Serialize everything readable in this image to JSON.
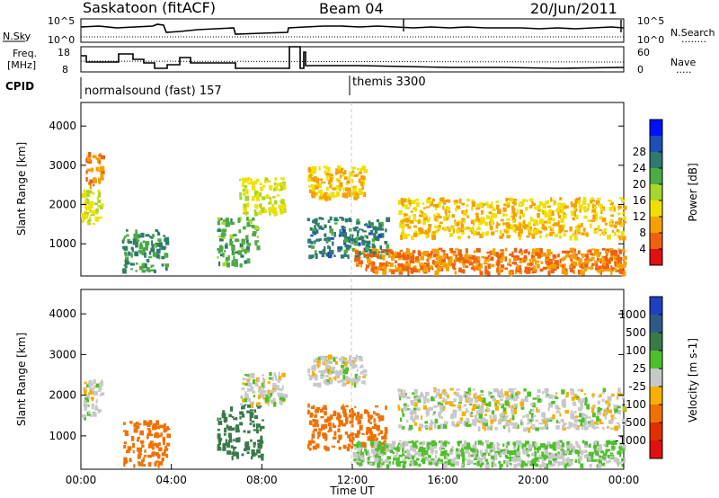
{
  "header": {
    "station": "Saskatoon (fitACF)",
    "beam": "Beam 04",
    "date": "20/Jun/2011"
  },
  "noise_panel": {
    "left_label": "N.Sky",
    "left_tick_top": "10^5",
    "left_tick_bottom": "10^0",
    "right_tick_top": "10^5",
    "right_tick_bottom": "10^0",
    "right_label": "N.Search",
    "right_label_line": "........"
  },
  "freq_panel": {
    "left_label_1": "Freq.",
    "left_label_2": "[MHz]",
    "left_tick_top": "18",
    "left_tick_bottom": "8",
    "right_tick_top": "60",
    "right_tick_bottom": "0",
    "right_label": "Nave",
    "right_label_line": "....."
  },
  "cpid": {
    "label": "CPID",
    "programs": [
      "normalsound (fast) 157",
      "themis 3300"
    ]
  },
  "chart_data": [
    {
      "type": "heatmap",
      "name": "Power",
      "xlabel": "",
      "ylabel": "Slant Range [km]",
      "xlim": [
        0,
        24
      ],
      "ylim": [
        180,
        4600
      ],
      "yticks": [
        "1000",
        "2000",
        "3000",
        "4000"
      ],
      "colorbar": {
        "label": "Power [dB]",
        "ticks": [
          "4",
          "8",
          "12",
          "16",
          "20",
          "24",
          "28"
        ],
        "colors": [
          "#0010ff",
          "#1f4fb4",
          "#2e7a6e",
          "#4daa44",
          "#a8d62a",
          "#f0e000",
          "#f5a000",
          "#f06010",
          "#e01010"
        ]
      },
      "echo_regions": [
        {
          "t0": 0.0,
          "t1": 0.9,
          "r0": 1500,
          "r1": 2400,
          "level": 13
        },
        {
          "t0": 1.8,
          "t1": 3.8,
          "r0": 300,
          "r1": 1400,
          "level": 22
        },
        {
          "t0": 0.2,
          "t1": 0.9,
          "r0": 2500,
          "r1": 3400,
          "level": 7
        },
        {
          "t0": 6.0,
          "t1": 7.8,
          "r0": 500,
          "r1": 1700,
          "level": 20
        },
        {
          "t0": 7.0,
          "t1": 9.0,
          "r0": 1800,
          "r1": 2700,
          "level": 13
        },
        {
          "t0": 10.0,
          "t1": 13.5,
          "r0": 700,
          "r1": 1700,
          "level": 24
        },
        {
          "t0": 10.0,
          "t1": 12.5,
          "r0": 2200,
          "r1": 3000,
          "level": 10
        },
        {
          "t0": 14.0,
          "t1": 24.0,
          "r0": 1200,
          "r1": 2200,
          "level": 10
        },
        {
          "t0": 12.0,
          "t1": 24.0,
          "r0": 300,
          "r1": 900,
          "level": 6
        }
      ]
    },
    {
      "type": "heatmap",
      "name": "Velocity",
      "xlabel": "Time UT",
      "ylabel": "Slant Range [km]",
      "xlim": [
        0,
        24
      ],
      "ylim": [
        180,
        4600
      ],
      "xticks": [
        "00:00",
        "04:00",
        "08:00",
        "12:00",
        "16:00",
        "20:00",
        "00:00"
      ],
      "yticks": [
        "1000",
        "2000",
        "3000",
        "4000"
      ],
      "colorbar": {
        "label": "Velocity [m s-1]",
        "ticks": [
          "1000",
          "500",
          "100",
          "25",
          "-25",
          "-100",
          "-500",
          "-1000"
        ],
        "colors": [
          "#1f3fc0",
          "#2e5a88",
          "#3a7a4a",
          "#4ec02a",
          "#c8c8c8",
          "#f5b000",
          "#f07000",
          "#e03000",
          "#e01010"
        ]
      },
      "echo_regions": [
        {
          "t0": 0.0,
          "t1": 0.9,
          "r0": 1500,
          "r1": 2400,
          "level": 0
        },
        {
          "t0": 1.8,
          "t1": 3.8,
          "r0": 300,
          "r1": 1400,
          "level": -150
        },
        {
          "t0": 6.0,
          "t1": 8.0,
          "r0": 500,
          "r1": 1800,
          "level": 150
        },
        {
          "t0": 7.0,
          "t1": 9.0,
          "r0": 1800,
          "r1": 2600,
          "level": 0
        },
        {
          "t0": 10.0,
          "t1": 13.5,
          "r0": 700,
          "r1": 1800,
          "level": -400
        },
        {
          "t0": 10.0,
          "t1": 12.5,
          "r0": 2300,
          "r1": 3000,
          "level": 0
        },
        {
          "t0": 14.0,
          "t1": 24.0,
          "r0": 1200,
          "r1": 2200,
          "level": 0
        },
        {
          "t0": 12.0,
          "t1": 24.0,
          "r0": 300,
          "r1": 900,
          "level": 30
        }
      ]
    }
  ]
}
